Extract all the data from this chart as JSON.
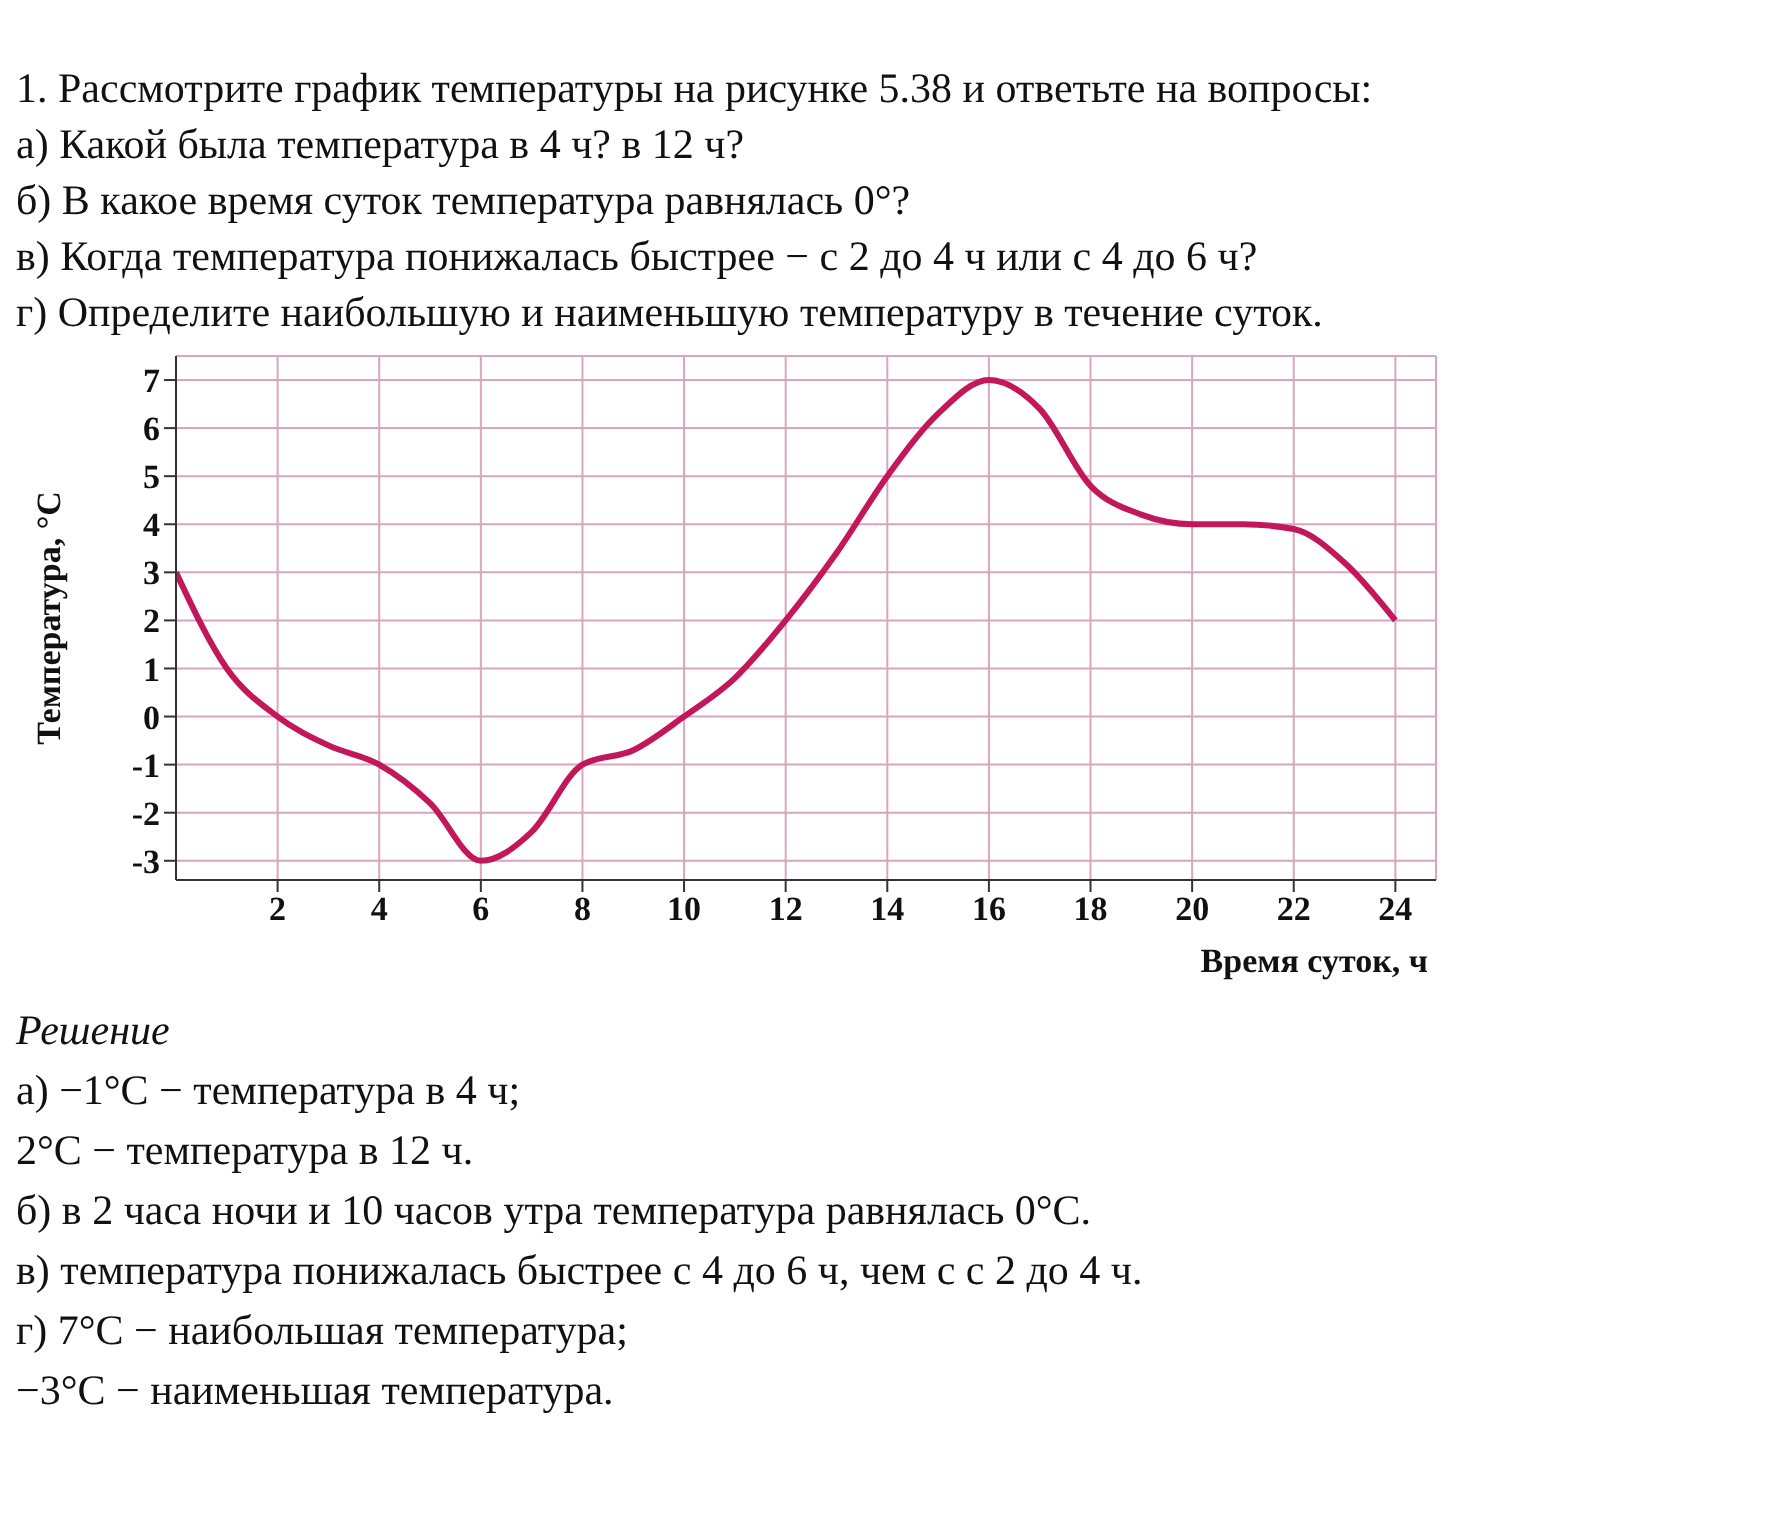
{
  "chart_data": {
    "type": "line",
    "title": "1. Рассмотрите график температуры на рисунке 5.38 и ответьте на вопросы:\nа) Какой была температура в 4 ч? в 12 ч?\nб) В какое время суток температура равнялась 0°?\nв) Когда температура понижалась быстрее − с 2 до 4 ч или с 4 до 6 ч?\nг) Определите наибольшую и наименьшую температуру в течение суток.",
    "xlabel": "Время суток, ч",
    "ylabel": "Температура, °C",
    "x": [
      0,
      1,
      2,
      3,
      4,
      5,
      6,
      7,
      8,
      9,
      10,
      11,
      12,
      13,
      14,
      15,
      16,
      17,
      18,
      19,
      20,
      21,
      22,
      23,
      24
    ],
    "series": [
      {
        "color": "#c2185b",
        "values": [
          3,
          1,
          0,
          -0.6,
          -1,
          -1.8,
          -3,
          -2.4,
          -1,
          -0.7,
          0,
          0.8,
          2,
          3.4,
          5,
          6.3,
          7,
          6.4,
          4.8,
          4.2,
          4,
          4,
          3.9,
          3.2,
          2
        ]
      }
    ],
    "xlim": [
      0,
      24.8
    ],
    "xticks": [
      2,
      4,
      6,
      8,
      10,
      12,
      14,
      16,
      18,
      20,
      22,
      24
    ],
    "ylim": [
      -3.4,
      7.5
    ],
    "yticks": [
      -3,
      -2,
      -1,
      0,
      1,
      2,
      3,
      4,
      5,
      6,
      7
    ],
    "grid": true,
    "annotations": [
      "Решение",
      "а) −1°C − температура в 4 ч;",
      "2°C − температура в 12 ч.",
      "б) в 2 часа ночи и 10 часов утра температура равнялась 0°C.",
      "в) температура понижалась быстрее с 4 до 6 ч, чем с с 2 до 4 ч.",
      "г) 7°C − наибольшая температура;",
      "−3°C − наименьшая температура."
    ]
  }
}
